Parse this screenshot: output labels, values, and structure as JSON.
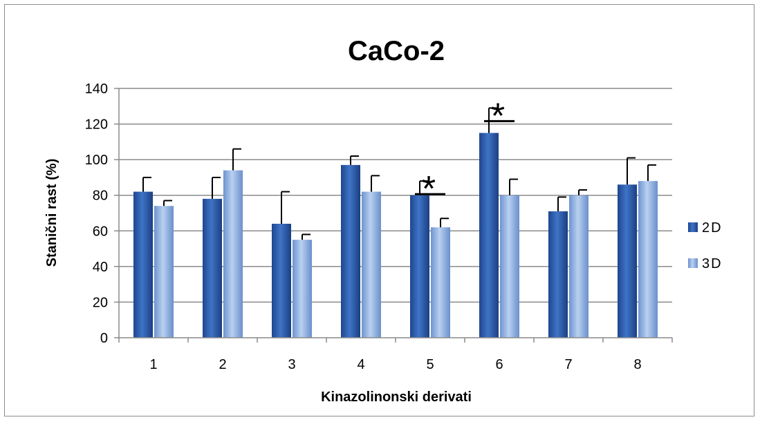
{
  "chart_data": {
    "type": "bar",
    "title": "CaCo-2",
    "xlabel": "Kinazolinonski derivati",
    "ylabel": "Stanični rast (%)",
    "ylim": [
      0,
      140
    ],
    "yticks": [
      0,
      20,
      40,
      60,
      80,
      100,
      120,
      140
    ],
    "categories": [
      "1",
      "2",
      "3",
      "4",
      "5",
      "6",
      "7",
      "8"
    ],
    "grid": "horizontal",
    "legend_position": "right",
    "series": [
      {
        "name": "2D",
        "color": "#2a5aa8",
        "values": [
          82,
          78,
          64,
          97,
          80,
          115,
          71,
          86
        ],
        "errors": [
          8,
          12,
          18,
          5,
          8,
          14,
          8,
          15
        ]
      },
      {
        "name": "3D",
        "color": "#8caee0",
        "values": [
          74,
          94,
          55,
          82,
          62,
          80,
          80,
          88
        ],
        "errors": [
          3,
          12,
          3,
          9,
          5,
          9,
          3,
          9
        ]
      }
    ],
    "annotations": [
      {
        "category": "5",
        "text": "*"
      },
      {
        "category": "6",
        "text": "*"
      }
    ]
  }
}
